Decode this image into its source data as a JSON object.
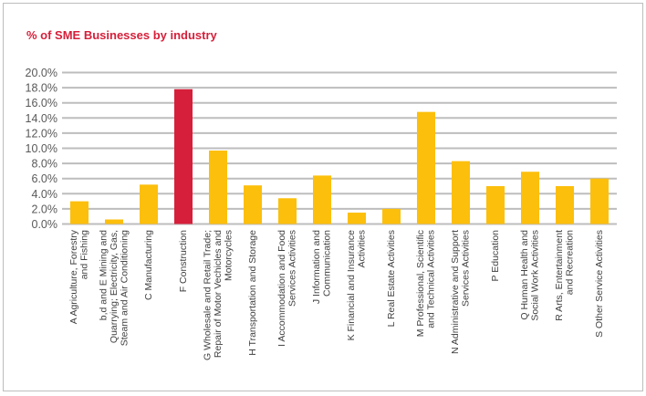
{
  "chart_data": {
    "type": "bar",
    "title": "% of SME Businesses by industry",
    "xlabel": "",
    "ylabel": "",
    "ylim": [
      0,
      20
    ],
    "ytick_step": 2,
    "yticks": [
      "0.0%",
      "2.0%",
      "4.0%",
      "6.0%",
      "8.0%",
      "10.0%",
      "12.0%",
      "14.0%",
      "16.0%",
      "18.0%",
      "20.0%"
    ],
    "grid": true,
    "legend": "none",
    "categories": [
      [
        "A Agriculture, Forestry",
        "and Fishing"
      ],
      [
        "b,d and E Mining and",
        "Quarrying; Electricity, Gas,",
        "Steam and Air Conditioning"
      ],
      [
        "C Manufacturing"
      ],
      [
        "F Construction"
      ],
      [
        "G Wholesale and Retail Trade;",
        "Repair of Motor Vechicles and",
        "Motorcycles"
      ],
      [
        "H Transportation and Storage"
      ],
      [
        "I Accommodation and Food",
        "Services Activities"
      ],
      [
        "J Information and",
        "Communication"
      ],
      [
        "K Financial and Insurance",
        "Activities"
      ],
      [
        "L Real Estate Activities"
      ],
      [
        "M Professional, Scientific",
        "and Technical Activities"
      ],
      [
        "N Administrative and Support",
        "Services Activities"
      ],
      [
        "P Education"
      ],
      [
        "Q Human Health and",
        "Social Work Activities"
      ],
      [
        "R Arts, Entertainment",
        "and Recreation"
      ],
      [
        "S Other Service Activities"
      ]
    ],
    "values": [
      3.0,
      0.6,
      5.2,
      17.8,
      9.7,
      5.1,
      3.4,
      6.4,
      1.5,
      2.0,
      14.8,
      8.3,
      5.0,
      6.9,
      5.0,
      6.0
    ],
    "highlight_index": 3,
    "colors": {
      "bar": "#fcbf0b",
      "highlight": "#d61f3a",
      "grid": "#bdbdbd",
      "title": "#d61f3a"
    }
  }
}
